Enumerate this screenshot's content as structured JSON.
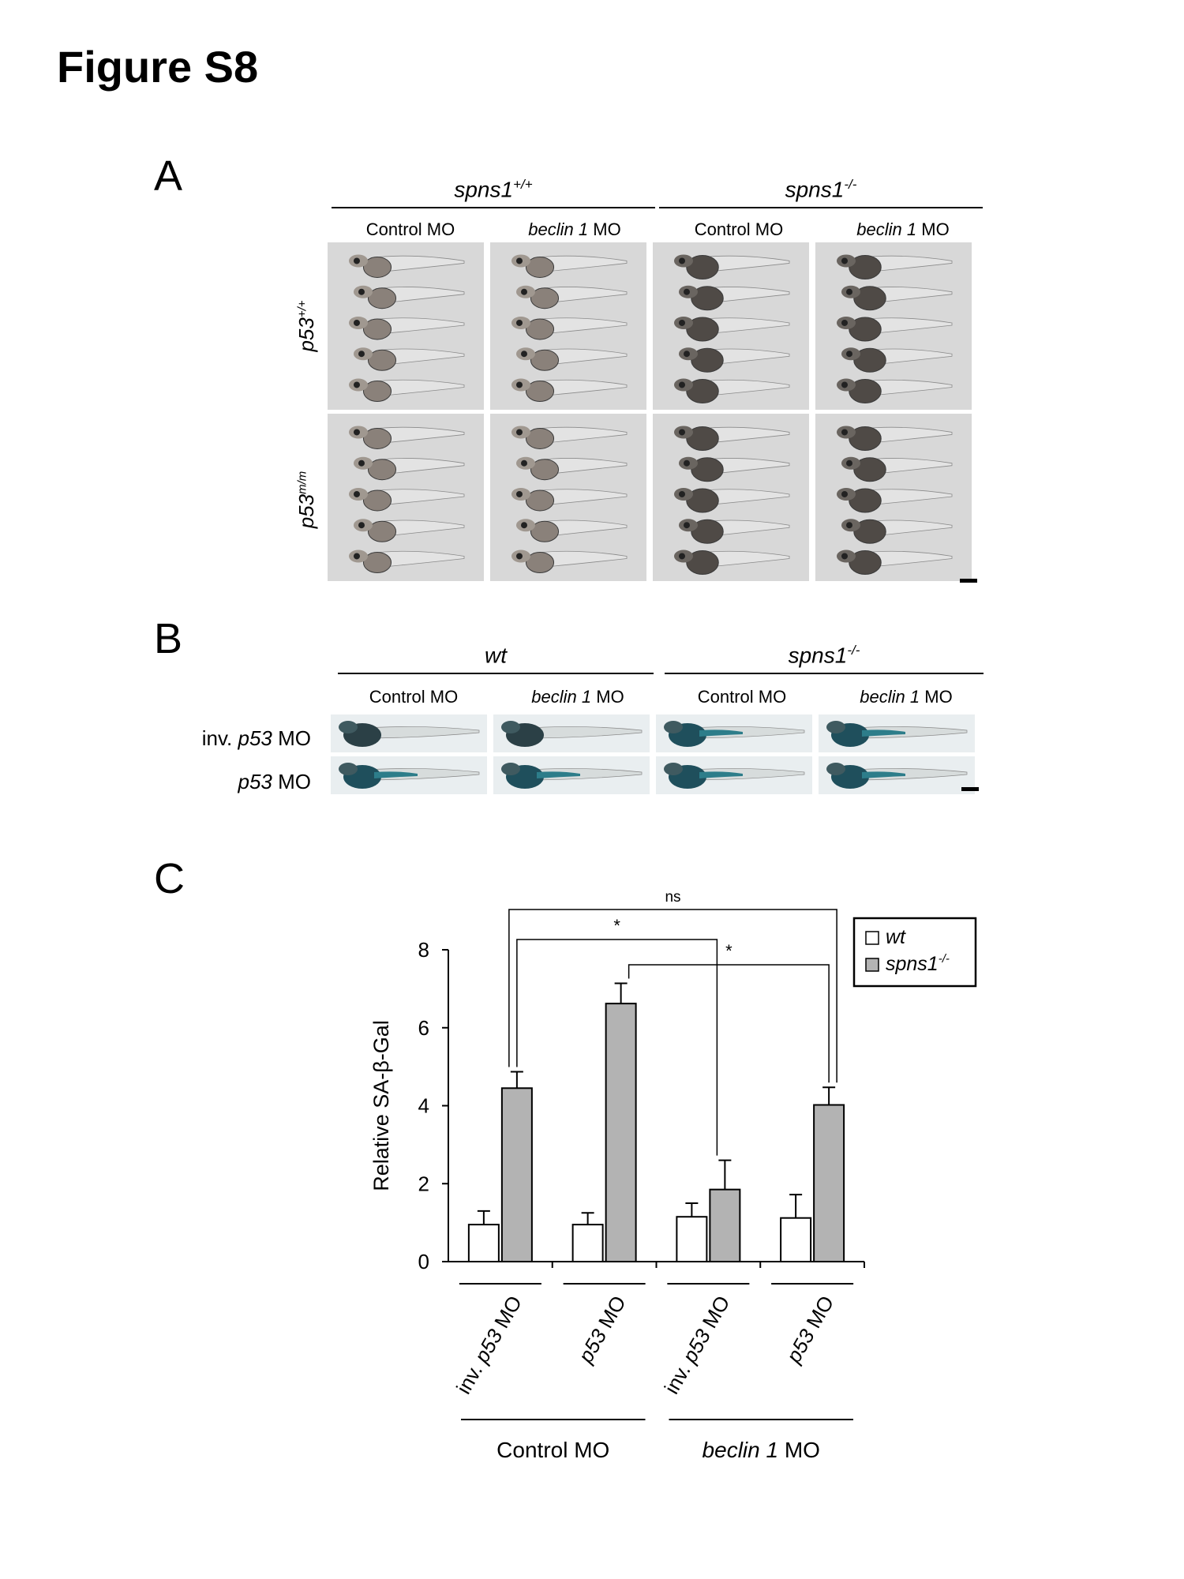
{
  "figure_title": "Figure S8",
  "panels": {
    "A": {
      "letter": "A",
      "groups": [
        {
          "base": "spns1",
          "sup": "+/+"
        },
        {
          "base": "spns1",
          "sup": "-/-"
        }
      ],
      "columns": [
        {
          "plain": "Control MO",
          "ital": "",
          "rest": ""
        },
        {
          "plain": "",
          "ital": "beclin 1",
          "rest": " MO"
        },
        {
          "plain": "Control MO",
          "ital": "",
          "rest": ""
        },
        {
          "plain": "",
          "ital": "beclin 1",
          "rest": " MO"
        }
      ],
      "rows": [
        {
          "base": "p53",
          "sup": "+/+"
        },
        {
          "base": "p53",
          "sup": "m/m"
        }
      ]
    },
    "B": {
      "letter": "B",
      "groups": [
        {
          "base": "wt",
          "sup": ""
        },
        {
          "base": "spns1",
          "sup": "-/-"
        }
      ],
      "columns": [
        {
          "plain": "Control MO",
          "ital": "",
          "rest": ""
        },
        {
          "plain": "",
          "ital": "beclin 1",
          "rest": " MO"
        },
        {
          "plain": "Control MO",
          "ital": "",
          "rest": ""
        },
        {
          "plain": "",
          "ital": "beclin 1",
          "rest": " MO"
        }
      ],
      "rows": [
        {
          "pre": "inv. ",
          "ital": "p53",
          "post": " MO"
        },
        {
          "pre": "",
          "ital": "p53",
          "post": " MO"
        }
      ]
    },
    "C": {
      "letter": "C"
    }
  },
  "chart_data": {
    "type": "bar",
    "ylabel": "Relative SA-β-Gal",
    "ylim": [
      0,
      8
    ],
    "yticks": [
      0,
      2,
      4,
      6,
      8
    ],
    "categories": [
      {
        "pre": "inv. ",
        "ital": "p53",
        "post": " MO"
      },
      {
        "pre": "",
        "ital": "p53",
        "post": " MO"
      },
      {
        "pre": "inv. ",
        "ital": "p53",
        "post": " MO"
      },
      {
        "pre": "",
        "ital": "p53",
        "post": " MO"
      }
    ],
    "category_groups": [
      {
        "pre": "Control MO",
        "ital": "",
        "post": ""
      },
      {
        "pre": "",
        "ital": "beclin 1",
        "post": " MO"
      }
    ],
    "series": [
      {
        "name": "wt",
        "sup": "",
        "color": "#ffffff",
        "values": [
          0.95,
          0.95,
          1.15,
          1.12
        ],
        "errors": [
          0.35,
          0.3,
          0.35,
          0.6
        ]
      },
      {
        "name": "spns1",
        "sup": "-/-",
        "color": "#b3b3b3",
        "values": [
          4.45,
          6.62,
          1.85,
          4.02
        ],
        "errors": [
          0.42,
          0.52,
          0.75,
          0.45
        ]
      }
    ],
    "significance": [
      {
        "label": "ns",
        "from": {
          "series": 1,
          "category": 0
        },
        "to": {
          "series": 1,
          "category": 3
        }
      },
      {
        "label": "*",
        "from": {
          "series": 1,
          "category": 0
        },
        "to": {
          "series": 1,
          "category": 2
        }
      },
      {
        "label": "*",
        "from": {
          "series": 1,
          "category": 1
        },
        "to": {
          "series": 1,
          "category": 3
        }
      }
    ],
    "legend_position": "top-right"
  }
}
